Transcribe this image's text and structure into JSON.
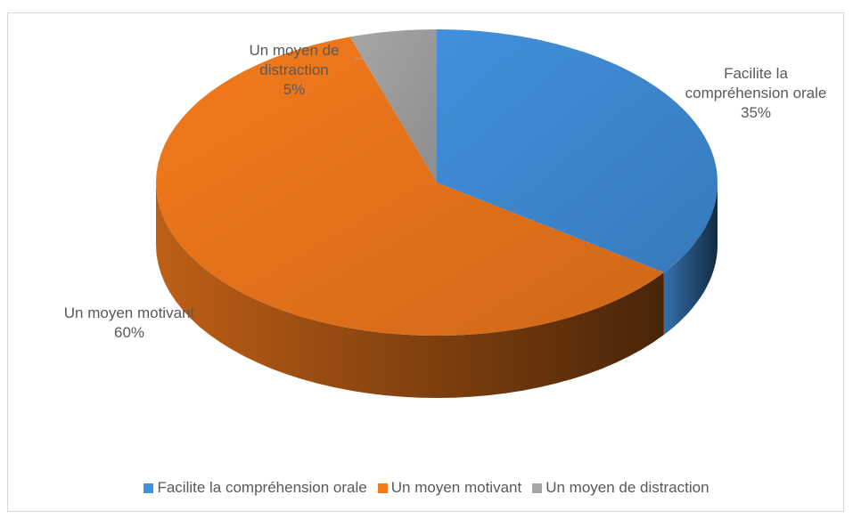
{
  "chart_data": {
    "type": "pie",
    "categories": [
      "Facilite la compréhension orale",
      "Un moyen motivant",
      "Un moyen de distraction"
    ],
    "values": [
      35,
      60,
      5
    ],
    "value_labels": [
      "35%",
      "60%",
      "5%"
    ],
    "colors": [
      "#4190dc",
      "#f47a1c",
      "#a6a6a6"
    ],
    "legend": "bottom"
  }
}
